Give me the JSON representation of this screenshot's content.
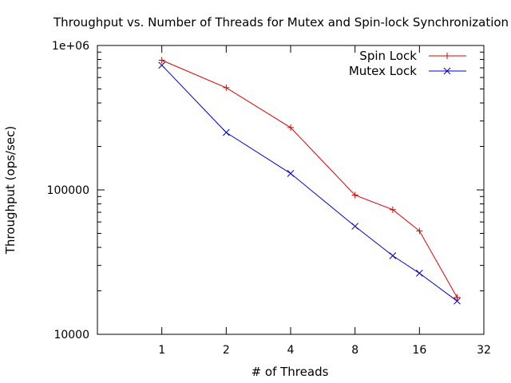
{
  "chart_data": {
    "type": "line",
    "title": "Throughput vs. Number of Threads for Mutex and Spin-lock Synchronization",
    "xlabel": "# of Threads",
    "ylabel": "Throughput (ops/sec)",
    "x_scale": "log2",
    "y_scale": "log10",
    "xlim": [
      0.5,
      32
    ],
    "ylim": [
      10000,
      1000000
    ],
    "x_ticks": [
      1,
      2,
      4,
      8,
      16,
      32
    ],
    "x_tick_labels": [
      "1",
      "2",
      "4",
      "8",
      "16",
      "32"
    ],
    "y_ticks": [
      10000,
      100000,
      1000000
    ],
    "y_tick_labels": [
      "10000",
      "100000",
      "1e+06"
    ],
    "legend_position": "top-right",
    "series": [
      {
        "name": "Spin Lock",
        "color": "#dd0000",
        "marker": "plus",
        "x": [
          1,
          2,
          4,
          8,
          12,
          16,
          24
        ],
        "y": [
          790000,
          510000,
          270000,
          92000,
          73000,
          52000,
          18000
        ]
      },
      {
        "name": "Mutex Lock",
        "color": "#0000cc",
        "marker": "cross",
        "x": [
          1,
          2,
          4,
          8,
          12,
          16,
          24
        ],
        "y": [
          730000,
          250000,
          130000,
          56000,
          35000,
          26500,
          17000
        ]
      }
    ]
  }
}
